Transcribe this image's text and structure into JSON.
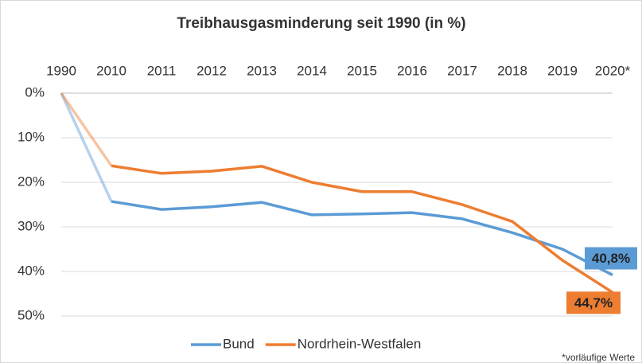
{
  "chart_data": {
    "type": "line",
    "title": "Treibhausgasminderung seit 1990 (in %)",
    "categories": [
      "1990",
      "2010",
      "2011",
      "2012",
      "2013",
      "2014",
      "2015",
      "2016",
      "2017",
      "2018",
      "2019",
      "2020*"
    ],
    "series": [
      {
        "name": "Bund",
        "color": "#5b9bd5",
        "values": [
          0,
          24.3,
          26.1,
          25.5,
          24.5,
          27.3,
          27.1,
          26.8,
          28.2,
          31.3,
          35.0,
          40.8
        ],
        "value_labels": [
          null,
          null,
          null,
          null,
          null,
          null,
          null,
          null,
          null,
          null,
          null,
          "40,8%"
        ]
      },
      {
        "name": "Nordrhein-Westfalen",
        "color": "#ed7d31",
        "values": [
          0,
          16.3,
          18.0,
          17.5,
          16.4,
          20.0,
          22.1,
          22.1,
          25.0,
          28.8,
          37.5,
          44.7
        ],
        "value_labels": [
          null,
          null,
          null,
          null,
          null,
          null,
          null,
          null,
          null,
          null,
          null,
          "44,7%"
        ]
      }
    ],
    "ylim": [
      0,
      50
    ],
    "inverted": true,
    "yticks": [
      {
        "value": 0,
        "label": "0%"
      },
      {
        "value": 10,
        "label": "10%"
      },
      {
        "value": 20,
        "label": "20%"
      },
      {
        "value": 30,
        "label": "30%"
      },
      {
        "value": 40,
        "label": "40%"
      },
      {
        "value": 50,
        "label": "50%"
      }
    ],
    "grid": true,
    "legend": "bottom",
    "annotation": "*vorläufige Werte"
  }
}
